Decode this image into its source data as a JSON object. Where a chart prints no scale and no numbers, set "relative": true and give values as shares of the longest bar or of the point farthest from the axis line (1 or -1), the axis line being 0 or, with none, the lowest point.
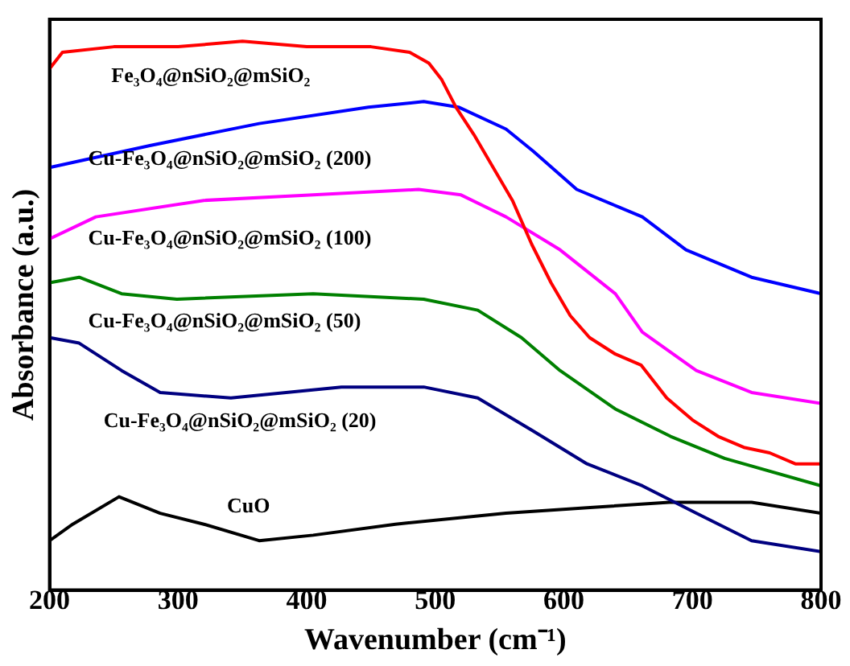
{
  "chart_data": {
    "type": "line",
    "relative": true,
    "xlabel": "Wavenumber (cm⁻¹)",
    "ylabel": "Absorbance (a.u.)",
    "xlim": [
      200,
      800
    ],
    "xticks": [
      200,
      300,
      400,
      500,
      600,
      700,
      800
    ],
    "legend": false,
    "grid": false,
    "marker": "none",
    "line_style": "solid",
    "series": [
      {
        "name": "Fe₃O₄@nSiO₂@mSiO₂",
        "color": "#ff0000",
        "x": [
          200,
          210,
          250,
          300,
          350,
          400,
          450,
          480,
          495,
          505,
          516,
          530,
          545,
          560,
          575,
          590,
          605,
          620,
          640,
          660,
          680,
          700,
          720,
          740,
          760,
          780,
          800
        ],
        "values": [
          0.95,
          0.98,
          0.99,
          0.99,
          1,
          0.99,
          0.99,
          0.98,
          0.96,
          0.93,
          0.88,
          0.83,
          0.77,
          0.71,
          0.63,
          0.56,
          0.5,
          0.46,
          0.43,
          0.41,
          0.35,
          0.31,
          0.28,
          0.26,
          0.25,
          0.23,
          0.23
        ]
      },
      {
        "name": "Cu-Fe₃O₄@nSiO₂@mSiO₂ (200)",
        "color": "#0000ff",
        "x": [
          200,
          278,
          363,
          448,
          491,
          518,
          555,
          576,
          610,
          661,
          695,
          746,
          800
        ],
        "values": [
          0.77,
          0.81,
          0.85,
          0.88,
          0.89,
          0.88,
          0.84,
          0.8,
          0.73,
          0.68,
          0.62,
          0.57,
          0.54
        ]
      },
      {
        "name": "Cu-Fe₃O₄@nSiO₂@mSiO₂ (100)",
        "color": "#ff00ff",
        "x": [
          200,
          236,
          320,
          405,
          487,
          520,
          555,
          597,
          640,
          661,
          703,
          746,
          800
        ],
        "values": [
          0.64,
          0.68,
          0.71,
          0.72,
          0.73,
          0.72,
          0.68,
          0.62,
          0.54,
          0.47,
          0.4,
          0.36,
          0.34
        ]
      },
      {
        "name": "Cu-Fe₃O₄@nSiO₂@mSiO₂ (50)",
        "color": "#008000",
        "x": [
          200,
          223,
          256,
          299,
          405,
          491,
          533,
          567,
          597,
          640,
          683,
          725,
          800
        ],
        "values": [
          0.56,
          0.57,
          0.54,
          0.53,
          0.54,
          0.53,
          0.51,
          0.46,
          0.4,
          0.33,
          0.28,
          0.24,
          0.19
        ]
      },
      {
        "name": "Cu-Fe₃O₄@nSiO₂@mSiO₂ (20)",
        "color": "#000080",
        "x": [
          200,
          223,
          256,
          286,
          341,
          427,
          491,
          533,
          576,
          618,
          661,
          703,
          746,
          800
        ],
        "values": [
          0.46,
          0.45,
          0.4,
          0.36,
          0.35,
          0.37,
          0.37,
          0.35,
          0.29,
          0.23,
          0.19,
          0.14,
          0.09,
          0.07
        ]
      },
      {
        "name": "CuO",
        "color": "#000000",
        "x": [
          200,
          218,
          254,
          286,
          320,
          363,
          405,
          469,
          555,
          618,
          682,
          746,
          800
        ],
        "values": [
          0.09,
          0.12,
          0.17,
          0.14,
          0.12,
          0.09,
          0.1,
          0.12,
          0.14,
          0.15,
          0.16,
          0.16,
          0.14
        ]
      }
    ]
  }
}
